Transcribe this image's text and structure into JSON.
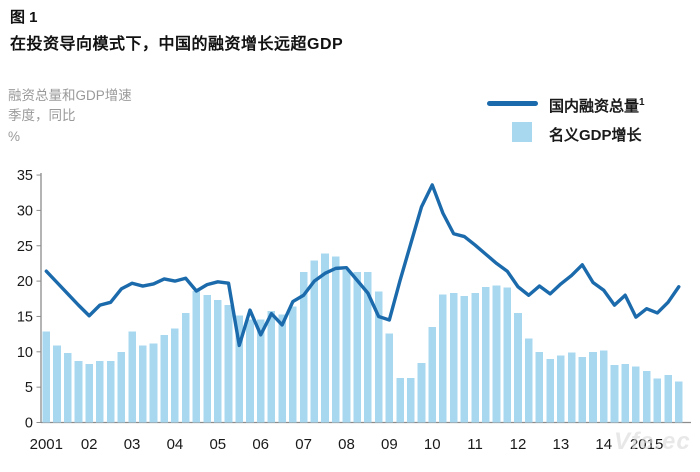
{
  "figure": {
    "label": "图 1",
    "title": "在投资导向模式下，中国的融资增长远超GDP"
  },
  "axis_unit": {
    "line1": "融资总量和GDP增速",
    "line2": "季度，同比",
    "line3": "%"
  },
  "legend": {
    "line_label": "国内融资总量",
    "line_footnote": "1",
    "bar_label": "名义GDP增长"
  },
  "watermark": "Vfe.ec",
  "colors": {
    "line": "#1b6aab",
    "bar": "#a8d8f0",
    "axis": "#8c8c8c",
    "text": "#1a1a1a",
    "muted": "#9a9a9a"
  },
  "chart_data": {
    "type": "bar",
    "title": "在投资导向模式下，中国的融资增长远超GDP",
    "ylabel": "融资总量和GDP增速，季度，同比，%",
    "xlabel": "",
    "frequency": "quarterly",
    "start_period": "2001Q1",
    "end_period": "2015Q4",
    "x_tick_labels": [
      "2001",
      "02",
      "03",
      "04",
      "05",
      "06",
      "07",
      "08",
      "09",
      "10",
      "11",
      "12",
      "13",
      "14",
      "2015"
    ],
    "ylim": [
      0,
      35
    ],
    "yticks": [
      0,
      5,
      10,
      15,
      20,
      25,
      30,
      35
    ],
    "grid": false,
    "legend_position": "top-right",
    "series": [
      {
        "name": "国内融资总量",
        "type": "line",
        "values": [
          21.4,
          19.8,
          18.2,
          16.6,
          15.1,
          16.6,
          17.0,
          18.9,
          19.7,
          19.3,
          19.6,
          20.3,
          20.0,
          20.4,
          18.6,
          19.5,
          19.9,
          19.7,
          10.9,
          15.9,
          12.4,
          15.4,
          13.8,
          17.1,
          18.0,
          20.0,
          21.1,
          21.8,
          21.9,
          20.1,
          18.3,
          15.0,
          14.5,
          20.1,
          25.3,
          30.5,
          33.6,
          29.6,
          26.7,
          26.3,
          25.1,
          23.8,
          22.5,
          21.4,
          19.2,
          18.0,
          19.3,
          18.2,
          19.6,
          20.8,
          22.3,
          19.8,
          18.7,
          16.6,
          18.0,
          14.9,
          16.1,
          15.5,
          17.0,
          19.2
        ]
      },
      {
        "name": "名义GDP增长",
        "type": "bar",
        "values": [
          12.9,
          10.9,
          9.8,
          8.7,
          8.3,
          8.7,
          8.7,
          10.0,
          12.9,
          10.9,
          11.2,
          12.4,
          13.3,
          15.5,
          18.6,
          18.0,
          17.3,
          16.6,
          15.1,
          14.6,
          14.6,
          15.8,
          15.3,
          16.4,
          21.3,
          22.9,
          23.9,
          23.5,
          21.6,
          21.3,
          21.3,
          18.5,
          12.6,
          6.3,
          6.3,
          8.4,
          13.5,
          18.1,
          18.3,
          17.9,
          18.3,
          19.2,
          19.4,
          19.1,
          15.5,
          11.9,
          10.0,
          9.0,
          9.5,
          9.9,
          9.3,
          10.0,
          10.2,
          8.1,
          8.3,
          7.9,
          7.3,
          6.2,
          6.7,
          5.8
        ]
      }
    ]
  }
}
